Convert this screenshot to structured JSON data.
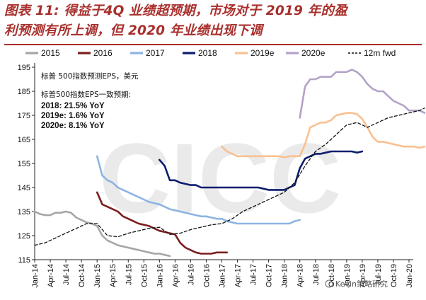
{
  "title": {
    "line1": "图表 11: 得益于4Q 业绩超预期，市场对于 2019 年的盈",
    "line2": "利预测有所上调，但 2020 年业绩出现下调"
  },
  "annotation": {
    "line1": "标普 500指数预测EPS，美元",
    "line2": "标普500指数EPS一致预期:",
    "line3": "2018: 21.5% YoY",
    "line4": "2019e: 1.6% YoY",
    "line5": "2020e: 8.1% YoY"
  },
  "watermark": "Kevin策略研究",
  "chart_data": {
    "type": "line",
    "ylim": [
      115,
      195
    ],
    "yticks": [
      115,
      125,
      135,
      145,
      155,
      165,
      175,
      185,
      195
    ],
    "xticks": [
      "Jan-14",
      "Apr-14",
      "Jul-14",
      "Oct-14",
      "Jan-15",
      "Apr-15",
      "Jul-15",
      "Oct-15",
      "Jan-16",
      "Apr-16",
      "Jul-16",
      "Oct-16",
      "Jan-17",
      "Apr-17",
      "Jul-17",
      "Oct-17",
      "Jan-18",
      "Apr-18",
      "Jul-18",
      "Oct-18",
      "Jan-19",
      "Apr-19",
      "Jul-19",
      "Oct-19",
      "Jan-20"
    ],
    "x_unit": "months since Jan-14",
    "legend_position": "top",
    "series": [
      {
        "name": "2015",
        "color": "#a6a6a6",
        "dash": false,
        "x": [
          0,
          1,
          2,
          3,
          4,
          5,
          6,
          7,
          8,
          9,
          10,
          11,
          12,
          13,
          14,
          15,
          16,
          17,
          18,
          19,
          20,
          21,
          22,
          23,
          24,
          25,
          26
        ],
        "y": [
          135,
          134,
          133.5,
          133.5,
          134.5,
          134.5,
          135,
          134.5,
          132.5,
          131.5,
          130.5,
          130,
          129,
          125,
          123,
          122,
          121,
          120.5,
          120,
          119.5,
          119,
          118.5,
          118,
          117.5,
          117.5,
          117,
          116.5
        ]
      },
      {
        "name": "2016",
        "color": "#7b1f1f",
        "dash": false,
        "x": [
          12,
          13,
          14,
          15,
          16,
          17,
          18,
          19,
          20,
          21,
          22,
          23,
          24,
          25,
          26,
          27,
          28,
          29,
          30,
          31,
          32,
          33,
          34,
          35,
          36,
          37
        ],
        "y": [
          143,
          138,
          137,
          136,
          135,
          133,
          132,
          131,
          130,
          129.5,
          129,
          128,
          127,
          126.5,
          126,
          125.5,
          122,
          120,
          119,
          118,
          117.5,
          117.5,
          117.5,
          118,
          118,
          118
        ]
      },
      {
        "name": "2017",
        "color": "#8db4e2",
        "dash": false,
        "x": [
          12,
          13,
          14,
          15,
          16,
          17,
          18,
          19,
          20,
          21,
          22,
          23,
          24,
          25,
          26,
          27,
          28,
          29,
          30,
          31,
          32,
          33,
          34,
          35,
          36,
          37,
          38,
          39,
          40,
          41,
          42,
          43,
          44,
          45,
          46,
          47,
          48,
          49,
          50,
          51
        ],
        "y": [
          158,
          150,
          148,
          147,
          145,
          144,
          143,
          142,
          141,
          140,
          139,
          138.5,
          138,
          137,
          136,
          135.5,
          135,
          134.5,
          134,
          133.5,
          133,
          133,
          132.5,
          132,
          132,
          131,
          130.5,
          130,
          130,
          130,
          130,
          130,
          130,
          130,
          130,
          130,
          130,
          130,
          131,
          131.5
        ]
      },
      {
        "name": "2018",
        "color": "#0d1e6e",
        "dash": false,
        "x": [
          24,
          25,
          26,
          27,
          28,
          29,
          30,
          31,
          32,
          33,
          34,
          35,
          36,
          37,
          38,
          39,
          40,
          41,
          42,
          43,
          44,
          45,
          46,
          47,
          48,
          49,
          50,
          51,
          52,
          53,
          54,
          55,
          56,
          57,
          58,
          59,
          60,
          61,
          62,
          63
        ],
        "y": [
          156.5,
          154,
          148,
          148,
          147,
          146.5,
          146,
          146,
          145,
          145,
          145,
          145,
          145,
          145,
          145,
          145,
          145,
          145,
          145,
          145,
          144.5,
          144,
          144,
          144,
          144,
          145,
          146,
          153,
          157,
          158,
          159,
          159,
          159.5,
          160,
          160,
          160,
          160,
          160,
          159.5,
          160
        ]
      },
      {
        "name": "2019e",
        "color": "#fac090",
        "dash": false,
        "x": [
          36,
          37,
          38,
          39,
          40,
          41,
          42,
          43,
          44,
          45,
          46,
          47,
          48,
          49,
          50,
          51,
          52,
          53,
          54,
          55,
          56,
          57,
          58,
          59,
          60,
          61,
          62,
          63,
          64,
          65,
          66,
          67,
          68,
          69,
          70,
          71,
          72,
          73,
          74,
          75
        ],
        "y": [
          162,
          160,
          159,
          158,
          158,
          158,
          158,
          158,
          158,
          158,
          158,
          158,
          157.5,
          158,
          158,
          158,
          163,
          170,
          171,
          172,
          172,
          173,
          175,
          175.5,
          176,
          176,
          175.5,
          173.5,
          170,
          166,
          164,
          164,
          163.5,
          163,
          162.5,
          162,
          162,
          162,
          161.5,
          162
        ]
      },
      {
        "name": "2020e",
        "color": "#b3a2c7",
        "dash": false,
        "x": [
          51,
          52,
          53,
          54,
          55,
          56,
          57,
          58,
          59,
          60,
          61,
          62,
          63,
          64,
          65,
          66,
          67,
          68,
          69,
          70,
          71,
          72,
          73,
          74,
          75
        ],
        "y": [
          174,
          187,
          190,
          190,
          191,
          191,
          191,
          193,
          193,
          193,
          194,
          193,
          191,
          188,
          186,
          185,
          185,
          183,
          181,
          180,
          179,
          177,
          177,
          177,
          176
        ]
      },
      {
        "name": "12m fwd",
        "color": "#111111",
        "dash": true,
        "x": [
          0,
          2,
          4,
          6,
          8,
          10,
          12,
          14,
          16,
          18,
          20,
          22,
          24,
          26,
          28,
          30,
          32,
          34,
          36,
          38,
          40,
          42,
          44,
          46,
          48,
          50,
          52,
          54,
          56,
          58,
          60,
          62,
          64,
          66,
          68,
          70,
          72,
          74,
          75
        ],
        "y": [
          121,
          122,
          124,
          126,
          128,
          130,
          130,
          125,
          124.5,
          126,
          127,
          128,
          128.5,
          125.5,
          126,
          127.5,
          128.5,
          129.5,
          130,
          132,
          135,
          137,
          139,
          141,
          143,
          147,
          154,
          160,
          163,
          167,
          171,
          172,
          170,
          172,
          174,
          175,
          176,
          177,
          178
        ]
      }
    ]
  }
}
